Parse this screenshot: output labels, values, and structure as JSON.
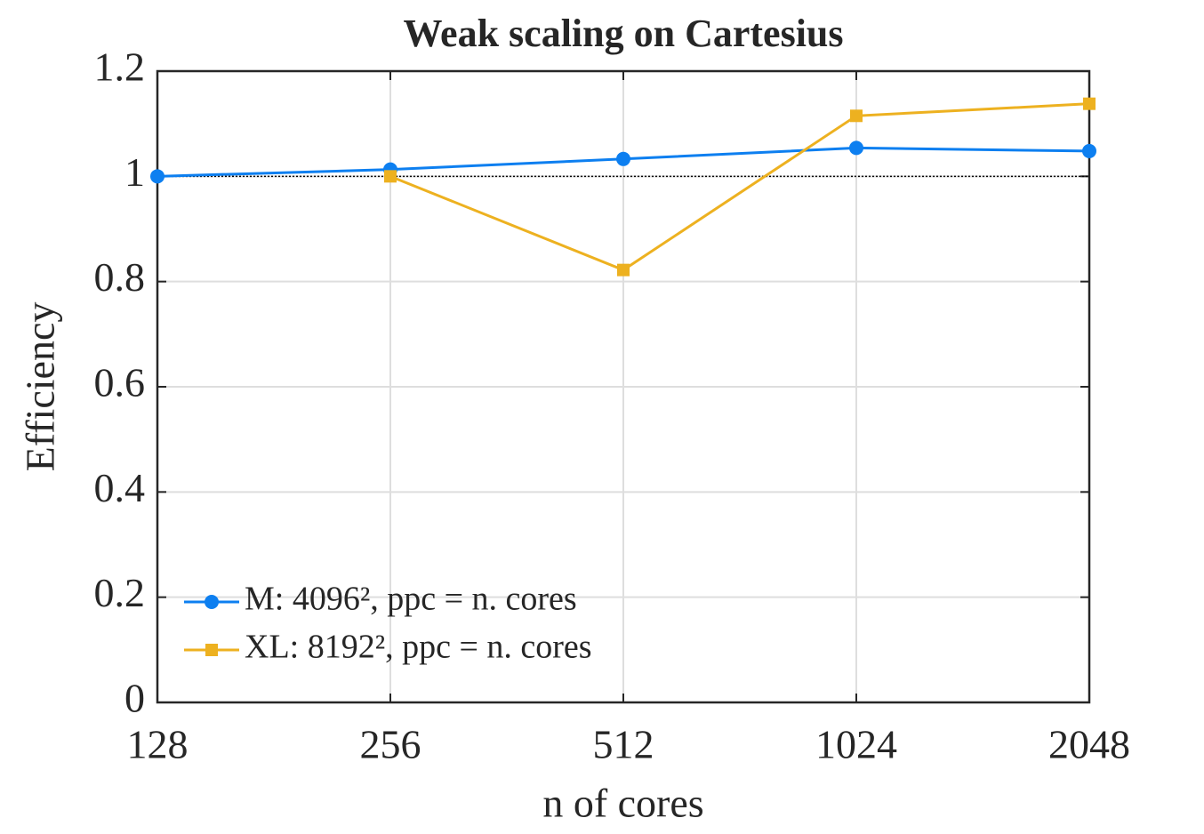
{
  "chart_data": {
    "type": "line",
    "title": "Weak scaling on Cartesius",
    "xlabel": "n of cores",
    "ylabel": "Efficiency",
    "x": [
      128,
      256,
      512,
      1024,
      2048
    ],
    "xscale": "log2",
    "xlim": [
      128,
      2048
    ],
    "xticks": [
      128,
      256,
      512,
      1024,
      2048
    ],
    "ylim": [
      0,
      1.2
    ],
    "yticks": [
      0,
      0.2,
      0.4,
      0.6,
      0.8,
      1,
      1.2
    ],
    "grid": true,
    "reference_line": 1,
    "legend": "lower left",
    "series": [
      {
        "name": "M: 4096², ppc = n. cores",
        "color": "#0d7ff0",
        "marker": "circle",
        "values": [
          1.0,
          1.013,
          1.033,
          1.054,
          1.048
        ]
      },
      {
        "name": "XL: 8192², ppc = n. cores",
        "color": "#edb120",
        "marker": "square",
        "values": [
          null,
          1.0,
          0.822,
          1.115,
          1.138
        ]
      }
    ]
  }
}
